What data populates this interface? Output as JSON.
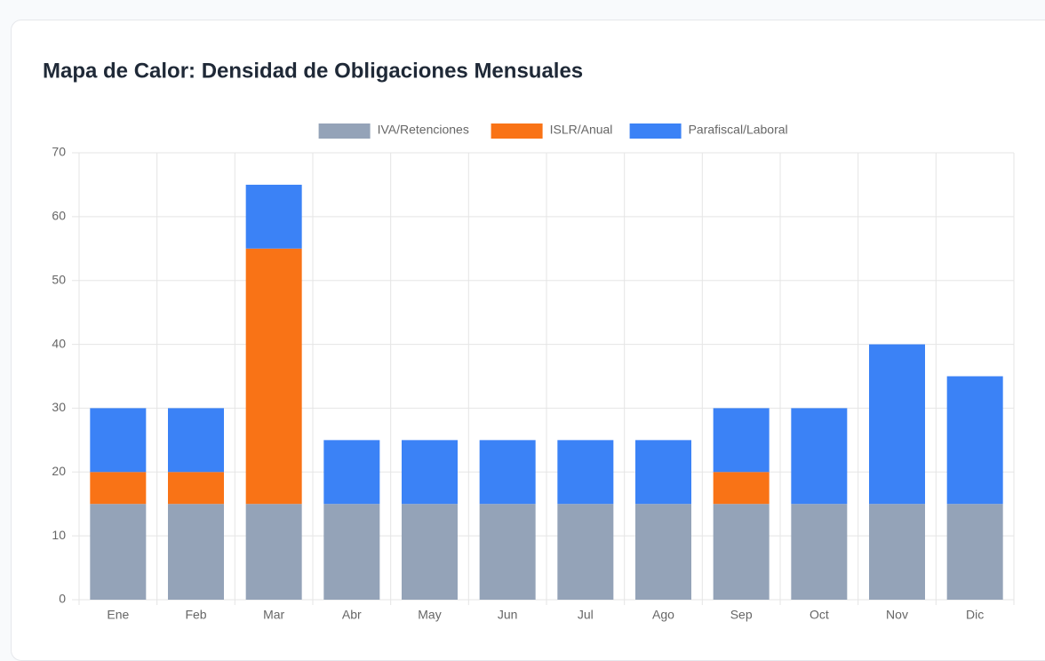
{
  "chart_data": {
    "type": "stacked_bar",
    "title": "Mapa de Calor: Densidad de Obligaciones Mensuales",
    "categories": [
      "Ene",
      "Feb",
      "Mar",
      "Abr",
      "May",
      "Jun",
      "Jul",
      "Ago",
      "Sep",
      "Oct",
      "Nov",
      "Dic"
    ],
    "series": [
      {
        "name": "IVA/Retenciones",
        "color": "#94a3b8",
        "values": [
          15,
          15,
          15,
          15,
          15,
          15,
          15,
          15,
          15,
          15,
          15,
          15
        ]
      },
      {
        "name": "ISLR/Anual",
        "color": "#f97316",
        "values": [
          5,
          5,
          40,
          0,
          0,
          0,
          0,
          0,
          5,
          0,
          0,
          0
        ]
      },
      {
        "name": "Parafiscal/Laboral",
        "color": "#3b82f6",
        "values": [
          10,
          10,
          10,
          10,
          10,
          10,
          10,
          10,
          10,
          15,
          25,
          20
        ]
      }
    ],
    "ylim": [
      0,
      70
    ],
    "yticks": [
      0,
      10,
      20,
      30,
      40,
      50,
      60,
      70
    ],
    "grid": true,
    "legend": "top"
  }
}
